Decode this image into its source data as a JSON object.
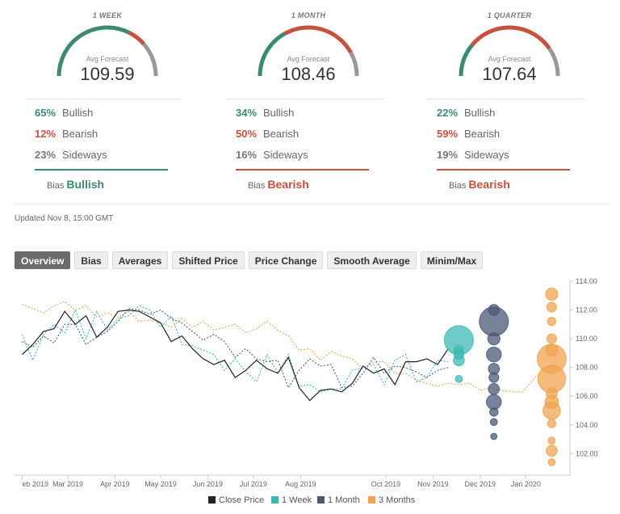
{
  "panels": [
    {
      "title": "1 WEEK",
      "avg_label": "Avg Forecast",
      "avg_value": "109.59",
      "bullish_pct": "65%",
      "bearish_pct": "12%",
      "sideways_pct": "23%",
      "bullish_label": "Bullish",
      "bearish_label": "Bearish",
      "sideways_label": "Sideways",
      "bias_label": "Bias",
      "bias_value": "Bullish",
      "bias_color": "#3b8a73",
      "gauge": {
        "bullish": 0.65,
        "bearish": 0.12,
        "sideways": 0.23
      }
    },
    {
      "title": "1 MONTH",
      "avg_label": "Avg Forecast",
      "avg_value": "108.46",
      "bullish_pct": "34%",
      "bearish_pct": "50%",
      "sideways_pct": "16%",
      "bullish_label": "Bullish",
      "bearish_label": "Bearish",
      "sideways_label": "Sideways",
      "bias_label": "Bias",
      "bias_value": "Bearish",
      "bias_color": "#c8503e",
      "gauge": {
        "bullish": 0.34,
        "bearish": 0.5,
        "sideways": 0.16
      }
    },
    {
      "title": "1 QUARTER",
      "avg_label": "Avg Forecast",
      "avg_value": "107.64",
      "bullish_pct": "22%",
      "bearish_pct": "59%",
      "sideways_pct": "19%",
      "bullish_label": "Bullish",
      "bearish_label": "Bearish",
      "sideways_label": "Sideways",
      "bias_label": "Bias",
      "bias_value": "Bearish",
      "bias_color": "#c8503e",
      "gauge": {
        "bullish": 0.22,
        "bearish": 0.59,
        "sideways": 0.19
      }
    }
  ],
  "colors": {
    "bullish": "#3b8a73",
    "bearish": "#c8503e",
    "sideways": "#999999",
    "close": "#222222",
    "week": "#3db9b4",
    "month": "#4a5a75",
    "quarter": "#f0a450"
  },
  "updated": "Updated Nov 8, 15:00 GMT",
  "tabs": [
    "Overview",
    "Bias",
    "Averages",
    "Shifted Price",
    "Price Change",
    "Smooth Average",
    "Minim/Max"
  ],
  "active_tab": "Overview",
  "chart_data": {
    "type": "line",
    "x_ticks": [
      "eb 2019",
      "Mar 2019",
      "Apr 2019",
      "May 2019",
      "Jun 2019",
      "Jul 2019",
      "Aug 2019",
      "Oct 2019",
      "Nov 2019",
      "Dec 2019",
      "Jan 2020"
    ],
    "y_ticks": [
      "114.00",
      "112.00",
      "110.00",
      "108.00",
      "106.00",
      "104.00",
      "102.00"
    ],
    "ylim": [
      100.5,
      114.0
    ],
    "grid": false,
    "legend": "bottom",
    "series": [
      {
        "name": "Close Price",
        "values": [
          [
            "2019-02-01",
            108.9
          ],
          [
            "2019-02-08",
            109.6
          ],
          [
            "2019-02-15",
            110.5
          ],
          [
            "2019-02-22",
            110.7
          ],
          [
            "2019-03-01",
            111.9
          ],
          [
            "2019-03-08",
            111.0
          ],
          [
            "2019-03-15",
            111.6
          ],
          [
            "2019-03-22",
            110.1
          ],
          [
            "2019-03-29",
            110.8
          ],
          [
            "2019-04-05",
            111.9
          ],
          [
            "2019-04-12",
            112.0
          ],
          [
            "2019-04-19",
            111.9
          ],
          [
            "2019-04-26",
            111.5
          ],
          [
            "2019-05-03",
            111.1
          ],
          [
            "2019-05-10",
            109.8
          ],
          [
            "2019-05-17",
            110.2
          ],
          [
            "2019-05-24",
            109.3
          ],
          [
            "2019-05-31",
            108.6
          ],
          [
            "2019-06-07",
            108.2
          ],
          [
            "2019-06-14",
            108.5
          ],
          [
            "2019-06-21",
            107.3
          ],
          [
            "2019-06-28",
            107.8
          ],
          [
            "2019-07-05",
            108.5
          ],
          [
            "2019-07-12",
            107.9
          ],
          [
            "2019-07-19",
            107.6
          ],
          [
            "2019-07-26",
            108.7
          ],
          [
            "2019-08-02",
            106.6
          ],
          [
            "2019-08-09",
            105.7
          ],
          [
            "2019-08-16",
            106.4
          ],
          [
            "2019-08-23",
            106.5
          ],
          [
            "2019-08-30",
            106.3
          ],
          [
            "2019-09-06",
            106.9
          ],
          [
            "2019-09-13",
            108.1
          ],
          [
            "2019-09-20",
            107.6
          ],
          [
            "2019-09-27",
            107.9
          ],
          [
            "2019-10-04",
            106.8
          ],
          [
            "2019-10-11",
            108.4
          ],
          [
            "2019-10-18",
            108.4
          ],
          [
            "2019-10-25",
            108.6
          ],
          [
            "2019-11-01",
            108.2
          ],
          [
            "2019-11-08",
            109.3
          ]
        ]
      },
      {
        "name": "1 Week",
        "values": [
          [
            "2019-02-01",
            110.3
          ],
          [
            "2019-02-08",
            108.5
          ],
          [
            "2019-02-15",
            110.3
          ],
          [
            "2019-02-22",
            111.0
          ],
          [
            "2019-03-01",
            110.4
          ],
          [
            "2019-03-08",
            112.0
          ],
          [
            "2019-03-15",
            110.0
          ],
          [
            "2019-03-22",
            111.9
          ],
          [
            "2019-03-29",
            110.6
          ],
          [
            "2019-04-05",
            111.4
          ],
          [
            "2019-04-12",
            111.6
          ],
          [
            "2019-04-19",
            112.3
          ],
          [
            "2019-04-26",
            112.0
          ],
          [
            "2019-05-03",
            110.8
          ],
          [
            "2019-05-10",
            111.6
          ],
          [
            "2019-05-17",
            109.6
          ],
          [
            "2019-05-24",
            109.5
          ],
          [
            "2019-05-31",
            109.2
          ],
          [
            "2019-06-07",
            108.9
          ],
          [
            "2019-06-14",
            107.8
          ],
          [
            "2019-06-21",
            108.6
          ],
          [
            "2019-06-28",
            107.7
          ],
          [
            "2019-07-05",
            107.0
          ],
          [
            "2019-07-12",
            108.9
          ],
          [
            "2019-07-19",
            107.6
          ],
          [
            "2019-07-26",
            108.9
          ],
          [
            "2019-08-02",
            106.7
          ],
          [
            "2019-08-09",
            106.8
          ],
          [
            "2019-08-16",
            106.3
          ],
          [
            "2019-08-23",
            106.5
          ],
          [
            "2019-08-30",
            106.5
          ],
          [
            "2019-09-06",
            107.8
          ],
          [
            "2019-09-13",
            108.0
          ],
          [
            "2019-09-20",
            108.2
          ],
          [
            "2019-09-27",
            106.8
          ],
          [
            "2019-10-04",
            108.5
          ],
          [
            "2019-10-11",
            108.9
          ],
          [
            "2019-10-18",
            107.0
          ],
          [
            "2019-10-25",
            107.3
          ],
          [
            "2019-11-01",
            108.5
          ],
          [
            "2019-11-08",
            108.4
          ]
        ]
      },
      {
        "name": "1 Month",
        "values": [
          [
            "2019-02-01",
            109.8
          ],
          [
            "2019-02-08",
            109.4
          ],
          [
            "2019-02-15",
            110.2
          ],
          [
            "2019-02-22",
            109.7
          ],
          [
            "2019-03-01",
            111.0
          ],
          [
            "2019-03-08",
            111.0
          ],
          [
            "2019-03-15",
            109.6
          ],
          [
            "2019-03-22",
            110.1
          ],
          [
            "2019-03-29",
            110.5
          ],
          [
            "2019-04-05",
            111.2
          ],
          [
            "2019-04-12",
            112.1
          ],
          [
            "2019-04-19",
            112.0
          ],
          [
            "2019-04-26",
            111.7
          ],
          [
            "2019-05-03",
            112.0
          ],
          [
            "2019-05-10",
            111.4
          ],
          [
            "2019-05-17",
            111.1
          ],
          [
            "2019-05-24",
            110.5
          ],
          [
            "2019-05-31",
            109.9
          ],
          [
            "2019-06-07",
            110.3
          ],
          [
            "2019-06-14",
            109.8
          ],
          [
            "2019-06-21",
            108.7
          ],
          [
            "2019-06-28",
            109.3
          ],
          [
            "2019-07-05",
            108.6
          ],
          [
            "2019-07-12",
            108.4
          ],
          [
            "2019-07-19",
            108.5
          ],
          [
            "2019-07-26",
            106.6
          ],
          [
            "2019-08-02",
            107.8
          ],
          [
            "2019-08-09",
            108.6
          ],
          [
            "2019-08-16",
            108.1
          ],
          [
            "2019-08-23",
            108.2
          ],
          [
            "2019-08-30",
            106.6
          ],
          [
            "2019-09-06",
            106.7
          ],
          [
            "2019-09-13",
            107.6
          ],
          [
            "2019-09-20",
            108.7
          ],
          [
            "2019-09-27",
            107.6
          ],
          [
            "2019-10-04",
            108.1
          ],
          [
            "2019-10-11",
            108.0
          ],
          [
            "2019-10-18",
            107.7
          ],
          [
            "2019-10-25",
            107.3
          ],
          [
            "2019-11-01",
            107.8
          ],
          [
            "2019-11-08",
            108.0
          ]
        ]
      },
      {
        "name": "3 Months",
        "values": [
          [
            "2019-02-01",
            112.4
          ],
          [
            "2019-02-08",
            112.1
          ],
          [
            "2019-02-15",
            111.8
          ],
          [
            "2019-02-22",
            112.3
          ],
          [
            "2019-03-01",
            112.6
          ],
          [
            "2019-03-08",
            112.0
          ],
          [
            "2019-03-15",
            112.3
          ],
          [
            "2019-03-22",
            111.5
          ],
          [
            "2019-03-29",
            111.8
          ],
          [
            "2019-04-05",
            111.5
          ],
          [
            "2019-04-12",
            111.9
          ],
          [
            "2019-04-19",
            111.2
          ],
          [
            "2019-04-26",
            111.3
          ],
          [
            "2019-05-03",
            111.1
          ],
          [
            "2019-05-10",
            110.8
          ],
          [
            "2019-05-17",
            111.4
          ],
          [
            "2019-05-24",
            110.8
          ],
          [
            "2019-05-31",
            111.2
          ],
          [
            "2019-06-07",
            110.6
          ],
          [
            "2019-06-14",
            110.8
          ],
          [
            "2019-06-21",
            111.0
          ],
          [
            "2019-06-28",
            110.4
          ],
          [
            "2019-07-05",
            110.7
          ],
          [
            "2019-07-12",
            111.2
          ],
          [
            "2019-07-19",
            110.6
          ],
          [
            "2019-07-26",
            110.2
          ],
          [
            "2019-08-02",
            109.2
          ],
          [
            "2019-08-09",
            109.3
          ],
          [
            "2019-08-16",
            108.5
          ],
          [
            "2019-08-23",
            109.1
          ],
          [
            "2019-08-30",
            108.8
          ],
          [
            "2019-09-06",
            108.6
          ],
          [
            "2019-09-13",
            107.9
          ],
          [
            "2019-09-20",
            108.4
          ],
          [
            "2019-09-27",
            108.4
          ],
          [
            "2019-10-04",
            107.6
          ],
          [
            "2019-10-11",
            107.6
          ],
          [
            "2019-10-18",
            107.1
          ],
          [
            "2019-10-25",
            106.9
          ],
          [
            "2019-11-01",
            106.7
          ],
          [
            "2019-11-08",
            106.9
          ],
          [
            "2019-11-15",
            106.8
          ],
          [
            "2019-11-22",
            106.9
          ],
          [
            "2019-11-29",
            106.4
          ],
          [
            "2019-12-06",
            106.6
          ],
          [
            "2019-12-13",
            106.4
          ],
          [
            "2019-12-20",
            106.3
          ],
          [
            "2019-12-27",
            106.3
          ],
          [
            "2020-01-03",
            107.2
          ],
          [
            "2020-01-10",
            107.8
          ]
        ]
      }
    ],
    "forecast_bubbles": [
      {
        "series": "1 Week",
        "date": "2019-11-15",
        "points": [
          [
            109.9,
            1.0
          ],
          [
            109.2,
            0.25
          ],
          [
            108.5,
            0.3
          ],
          [
            108.9,
            0.25
          ],
          [
            107.2,
            0.15
          ]
        ]
      },
      {
        "series": "1 Month",
        "date": "2019-12-08",
        "points": [
          [
            111.2,
            1.0
          ],
          [
            112.0,
            0.3
          ],
          [
            110.0,
            0.35
          ],
          [
            108.9,
            0.45
          ],
          [
            107.9,
            0.3
          ],
          [
            107.3,
            0.25
          ],
          [
            106.5,
            0.3
          ],
          [
            105.6,
            0.45
          ],
          [
            104.9,
            0.2
          ],
          [
            104.2,
            0.15
          ],
          [
            103.2,
            0.12
          ]
        ]
      },
      {
        "series": "3 Months",
        "date": "2020-01-15",
        "points": [
          [
            113.1,
            0.35
          ],
          [
            112.2,
            0.25
          ],
          [
            111.2,
            0.2
          ],
          [
            110.0,
            0.25
          ],
          [
            109.2,
            0.35
          ],
          [
            108.6,
            1.0
          ],
          [
            107.2,
            0.95
          ],
          [
            106.2,
            0.3
          ],
          [
            105.6,
            0.4
          ],
          [
            105.0,
            0.55
          ],
          [
            104.1,
            0.2
          ],
          [
            102.9,
            0.15
          ],
          [
            102.2,
            0.3
          ],
          [
            101.4,
            0.15
          ]
        ]
      }
    ],
    "legend_entries": [
      "Close Price",
      "1 Week",
      "1 Month",
      "3 Months"
    ]
  }
}
